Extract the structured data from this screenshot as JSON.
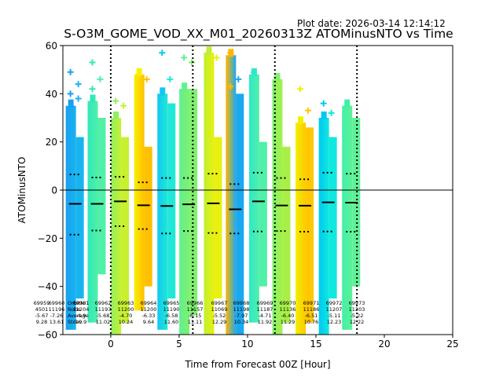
{
  "header": {
    "plot_date": "Plot date: 2026-03-14 12:14:12"
  },
  "chart_data": {
    "type": "scatter",
    "title": "S-O3M_GOME_VOD_XX_M01_20260313Z ATOMinusNTO vs Time",
    "xlabel": "Time from Forecast 00Z [Hour]",
    "ylabel": "ATOMinusNTO",
    "xlim": [
      -3.5,
      25
    ],
    "ylim": [
      -60,
      60
    ],
    "xticks": [
      0,
      5,
      10,
      15,
      20,
      25
    ],
    "xtick_labels": [
      "0",
      "5",
      "10",
      "15",
      "20",
      "25"
    ],
    "yticks": [
      -60,
      -40,
      -20,
      0,
      20,
      40,
      60
    ],
    "ytick_labels": [
      "−60",
      "−40",
      "−20",
      "0",
      "20",
      "40",
      "60"
    ],
    "zero_line": 0,
    "vertical_dotted_lines": [
      0,
      6,
      12,
      18
    ],
    "stat_labels": [
      "OrbitNr",
      "Nobs",
      "Average",
      "Stdev"
    ],
    "orbits": [
      {
        "orbit": "69959",
        "nobs": "4501",
        "average": "-5.67",
        "stdev": "9.28",
        "time": -2.6,
        "mean": -5.7,
        "p_hi": 6.5,
        "p_lo": -18.5,
        "colors": [
          "#1a9ff0",
          "#18b4f0"
        ],
        "top": 35,
        "bottom": -58,
        "sub_top": 22,
        "sub_bottom": -45,
        "outliers": [
          49,
          44,
          40,
          38
        ]
      },
      {
        "orbit": "69960",
        "nobs": "11196",
        "average": "-7.26",
        "stdev": "13.61",
        "time": -2.6,
        "mean": -5.7,
        "p_hi": 6.5,
        "p_lo": -18.5,
        "colors": [
          "#1a9ff0",
          "#18b4f0"
        ],
        "top": 35,
        "bottom": -58,
        "sub_top": 22,
        "sub_bottom": -45,
        "outliers": []
      },
      {
        "orbit": "69961",
        "nobs": "11204",
        "average": "-4.9",
        "stdev": "10.9",
        "time": -1.0,
        "mean": -5.7,
        "p_hi": 5.2,
        "p_lo": -16.8,
        "colors": [
          "#30e8b8",
          "#50f0a8"
        ],
        "top": 37,
        "bottom": -55,
        "sub_top": 30,
        "sub_bottom": -35,
        "outliers": [
          53,
          46,
          42
        ]
      },
      {
        "orbit": "69962",
        "nobs": "11193",
        "average": "-5.68",
        "stdev": "11.02",
        "time": 0.7,
        "mean": -4.7,
        "p_hi": 5.5,
        "p_lo": -15.0,
        "colors": [
          "#90f060",
          "#c8f030"
        ],
        "top": 30,
        "bottom": -60,
        "sub_top": 22,
        "sub_bottom": -55,
        "outliers": [
          37,
          35
        ]
      },
      {
        "orbit": "69963",
        "nobs": "11200",
        "average": "-4.70",
        "stdev": "10.24",
        "time": 2.4,
        "mean": -6.3,
        "p_hi": 3.2,
        "p_lo": -16.2,
        "colors": [
          "#f8f000",
          "#ffc000"
        ],
        "top": 48,
        "bottom": -50,
        "sub_top": 18,
        "sub_bottom": -40,
        "outliers": [
          48,
          46
        ]
      },
      {
        "orbit": "69964",
        "nobs": "11200",
        "average": "-6.33",
        "stdev": "9.64",
        "time": 4.1,
        "mean": -6.6,
        "p_hi": 5.0,
        "p_lo": -18.0,
        "colors": [
          "#10c8f0",
          "#20e8d8"
        ],
        "top": 40,
        "bottom": -58,
        "sub_top": 36,
        "sub_bottom": -45,
        "outliers": [
          57,
          46
        ]
      },
      {
        "orbit": "69965",
        "nobs": "11190",
        "average": "-6.58",
        "stdev": "11.60",
        "time": 5.7,
        "mean": -5.9,
        "p_hi": 5.0,
        "p_lo": -17.0,
        "colors": [
          "#60f090",
          "#80f070"
        ],
        "top": 42,
        "bottom": -60,
        "sub_top": 42,
        "sub_bottom": -52,
        "outliers": [
          55,
          53
        ]
      },
      {
        "orbit": "69966",
        "nobs": "11157",
        "average": "-6.15",
        "stdev": "11.11",
        "time": 7.5,
        "mean": -5.5,
        "p_hi": 6.8,
        "p_lo": -17.8,
        "colors": [
          "#c0f030",
          "#e8f010"
        ],
        "top": 57,
        "bottom": -60,
        "sub_top": 22,
        "sub_bottom": -45,
        "outliers": [
          57,
          55
        ]
      },
      {
        "orbit": "69967",
        "nobs": "11069",
        "average": "-5.52",
        "stdev": "12.29",
        "time": 9.1,
        "mean": -8.0,
        "p_hi": 2.5,
        "p_lo": -18.0,
        "colors": [
          "#ffb800",
          "#1aa8f0"
        ],
        "top": 56,
        "bottom": -60,
        "sub_top": 40,
        "sub_bottom": -60,
        "outliers": [
          57,
          46,
          43
        ]
      },
      {
        "orbit": "69968",
        "nobs": "11198",
        "average": "-7.97",
        "stdev": "10.34",
        "time": 10.8,
        "mean": -4.7,
        "p_hi": 7.2,
        "p_lo": -17.2,
        "colors": [
          "#30e8c8",
          "#50f0a8"
        ],
        "top": 48,
        "bottom": -55,
        "sub_top": 20,
        "sub_bottom": -40,
        "outliers": [
          49
        ]
      },
      {
        "orbit": "69969",
        "nobs": "11187",
        "average": "-4.71",
        "stdev": "11.92",
        "time": 12.5,
        "mean": -6.4,
        "p_hi": 5.0,
        "p_lo": -17.0,
        "colors": [
          "#80f070",
          "#a8f048"
        ],
        "top": 46,
        "bottom": -60,
        "sub_top": 18,
        "sub_bottom": -55,
        "outliers": [
          47
        ]
      },
      {
        "orbit": "69970",
        "nobs": "11136",
        "average": "-6.40",
        "stdev": "11.29",
        "time": 14.2,
        "mean": -6.5,
        "p_hi": 4.5,
        "p_lo": -17.3,
        "colors": [
          "#f0f000",
          "#ffc800"
        ],
        "top": 28,
        "bottom": -60,
        "sub_top": 26,
        "sub_bottom": -55,
        "outliers": [
          42,
          33
        ]
      },
      {
        "orbit": "69971",
        "nobs": "11186",
        "average": "-6.51",
        "stdev": "10.76",
        "time": 15.9,
        "mean": -5.1,
        "p_hi": 7.2,
        "p_lo": -17.2,
        "colors": [
          "#00c8f0",
          "#10e8e0"
        ],
        "top": 30,
        "bottom": -60,
        "sub_top": 22,
        "sub_bottom": -45,
        "outliers": [
          36,
          32
        ]
      },
      {
        "orbit": "69972",
        "nobs": "11207",
        "average": "-5.11",
        "stdev": "12.23",
        "time": 17.6,
        "mean": -5.2,
        "p_hi": 6.8,
        "p_lo": -17.3,
        "colors": [
          "#40f0a8",
          "#60f098"
        ],
        "top": 35,
        "bottom": -58,
        "sub_top": 30,
        "sub_bottom": -40,
        "outliers": []
      },
      {
        "orbit": "69973",
        "nobs": "11203",
        "average": "-5.22",
        "stdev": "12.22",
        "time": 17.6,
        "mean": -5.2,
        "p_hi": 6.8,
        "p_lo": -17.3,
        "colors": [
          "#40f0a8",
          "#60f098"
        ],
        "top": 35,
        "bottom": -58,
        "sub_top": 30,
        "sub_bottom": -40,
        "outliers": []
      }
    ]
  }
}
